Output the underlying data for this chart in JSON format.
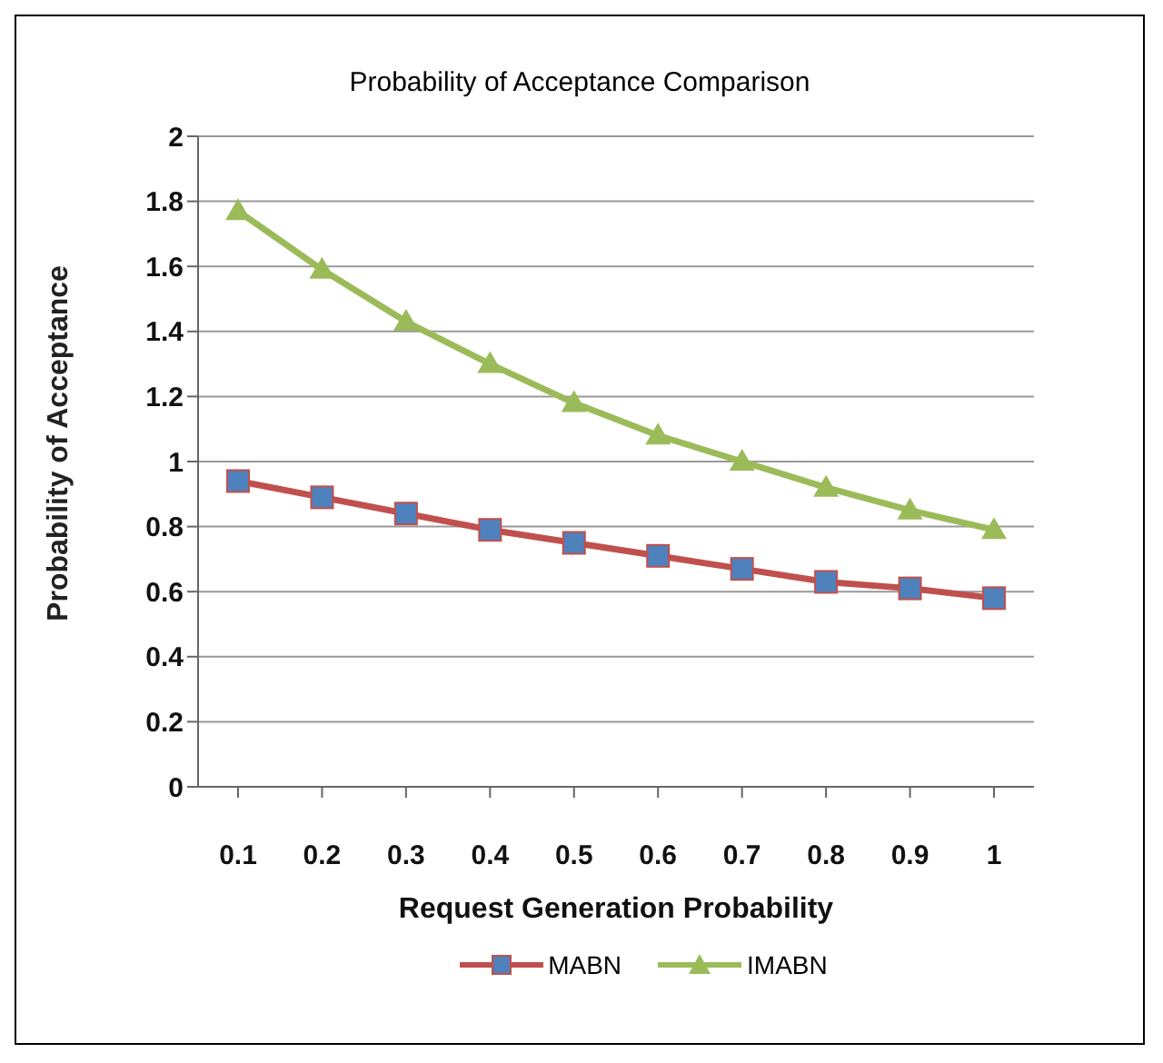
{
  "chart_data": {
    "type": "line",
    "title": "Probability of Acceptance Comparison",
    "xlabel": "Request Generation Probability",
    "ylabel": "Probability of Acceptance",
    "categories": [
      "0.1",
      "0.2",
      "0.3",
      "0.4",
      "0.5",
      "0.6",
      "0.7",
      "0.8",
      "0.9",
      "1"
    ],
    "series": [
      {
        "name": "MABN",
        "color": "#c0504d",
        "marker": "square",
        "values": [
          0.94,
          0.89,
          0.84,
          0.79,
          0.75,
          0.71,
          0.67,
          0.63,
          0.61,
          0.58
        ]
      },
      {
        "name": "IMABN",
        "color": "#9bbb59",
        "marker": "triangle",
        "values": [
          1.77,
          1.59,
          1.43,
          1.3,
          1.18,
          1.08,
          1.0,
          0.92,
          0.85,
          0.79
        ]
      }
    ],
    "ylim": [
      0,
      2
    ],
    "yticks": [
      0,
      0.2,
      0.4,
      0.6,
      0.8,
      1,
      1.2,
      1.4,
      1.6,
      1.8,
      2
    ],
    "grid": "y",
    "legend": "bottom",
    "line_style": "solid"
  }
}
